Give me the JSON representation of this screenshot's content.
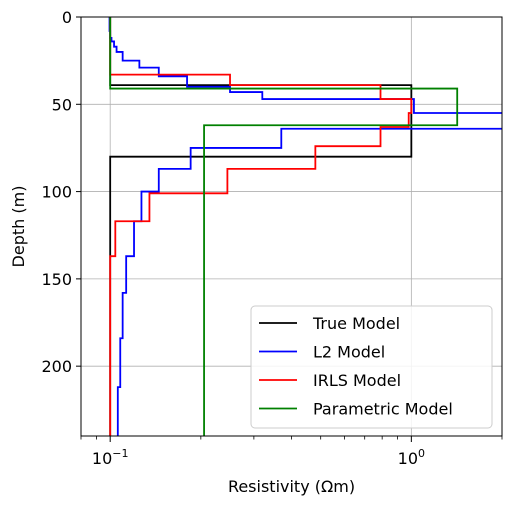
{
  "chart_data": {
    "type": "line",
    "title": "",
    "xlabel": "Resistivity (Ωm)",
    "ylabel": "Depth (m)",
    "xscale": "log",
    "xlim": [
      0.08,
      2.0
    ],
    "ylim": [
      0,
      240
    ],
    "y_inverted": true,
    "grid": true,
    "legend_position": "lower-right",
    "x_ticks": [
      {
        "value": 0.1,
        "base": "10",
        "exp": "−1"
      },
      {
        "value": 1.0,
        "base": "10",
        "exp": "0"
      }
    ],
    "y_ticks": [
      {
        "value": 0,
        "label": "0"
      },
      {
        "value": 50,
        "label": "50"
      },
      {
        "value": 100,
        "label": "100"
      },
      {
        "value": 150,
        "label": "150"
      },
      {
        "value": 200,
        "label": "200"
      }
    ],
    "series": [
      {
        "name": "True Model",
        "color": "#000000",
        "points": [
          [
            0.1,
            0
          ],
          [
            0.1,
            39
          ],
          [
            1.0,
            39
          ],
          [
            1.0,
            80
          ],
          [
            0.1,
            80
          ],
          [
            0.1,
            240
          ]
        ]
      },
      {
        "name": "L2 Model",
        "color": "#0000ff",
        "points": [
          [
            0.0995,
            0
          ],
          [
            0.0995,
            8
          ],
          [
            0.1,
            8
          ],
          [
            0.1,
            12
          ],
          [
            0.101,
            12
          ],
          [
            0.101,
            14
          ],
          [
            0.103,
            14
          ],
          [
            0.103,
            17
          ],
          [
            0.105,
            17
          ],
          [
            0.105,
            20
          ],
          [
            0.11,
            20
          ],
          [
            0.11,
            25
          ],
          [
            0.125,
            25
          ],
          [
            0.125,
            29
          ],
          [
            0.145,
            29
          ],
          [
            0.145,
            34
          ],
          [
            0.18,
            34
          ],
          [
            0.18,
            40
          ],
          [
            0.25,
            40
          ],
          [
            0.25,
            43
          ],
          [
            0.32,
            43
          ],
          [
            0.32,
            47
          ],
          [
            1.02,
            47
          ],
          [
            1.02,
            55
          ],
          [
            2.5,
            55
          ],
          [
            2.5,
            64
          ],
          [
            0.37,
            64
          ],
          [
            0.37,
            75
          ],
          [
            0.185,
            75
          ],
          [
            0.185,
            87
          ],
          [
            0.145,
            87
          ],
          [
            0.145,
            100
          ],
          [
            0.127,
            100
          ],
          [
            0.127,
            117
          ],
          [
            0.12,
            117
          ],
          [
            0.12,
            137
          ],
          [
            0.113,
            137
          ],
          [
            0.113,
            158
          ],
          [
            0.11,
            158
          ],
          [
            0.11,
            184
          ],
          [
            0.108,
            184
          ],
          [
            0.108,
            212
          ],
          [
            0.106,
            212
          ],
          [
            0.106,
            240
          ]
        ]
      },
      {
        "name": "IRLS Model",
        "color": "#ff0000",
        "points": [
          [
            0.1,
            0
          ],
          [
            0.1,
            33
          ],
          [
            0.25,
            33
          ],
          [
            0.25,
            39
          ],
          [
            0.79,
            39
          ],
          [
            0.79,
            47
          ],
          [
            1.0,
            47
          ],
          [
            1.0,
            55
          ],
          [
            0.98,
            55
          ],
          [
            0.98,
            63
          ],
          [
            0.79,
            63
          ],
          [
            0.79,
            74
          ],
          [
            0.48,
            74
          ],
          [
            0.48,
            87
          ],
          [
            0.245,
            87
          ],
          [
            0.245,
            101
          ],
          [
            0.135,
            101
          ],
          [
            0.135,
            117
          ],
          [
            0.104,
            117
          ],
          [
            0.104,
            137
          ],
          [
            0.1,
            137
          ],
          [
            0.1,
            240
          ]
        ]
      },
      {
        "name": "Parametric Model",
        "color": "#008000",
        "points": [
          [
            0.1,
            0
          ],
          [
            0.1,
            41
          ],
          [
            1.42,
            41
          ],
          [
            1.42,
            62
          ],
          [
            0.205,
            62
          ],
          [
            0.205,
            240
          ]
        ]
      }
    ]
  }
}
